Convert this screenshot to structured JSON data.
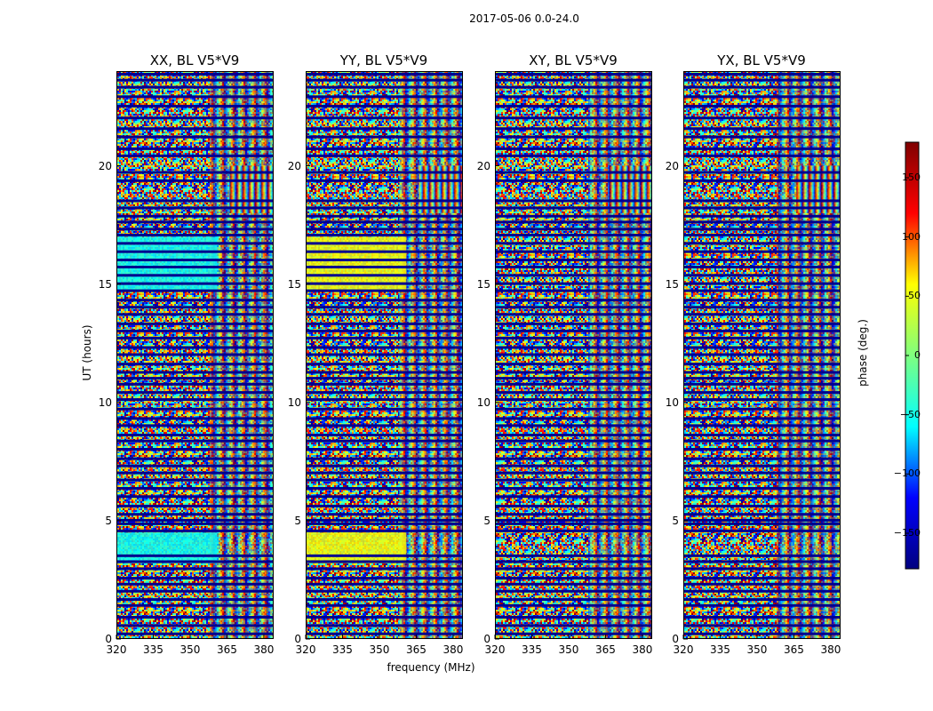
{
  "suptitle": "2017-05-06 0.0-24.0",
  "chart_data": {
    "type": "heatmap",
    "title": "2017-05-06 0.0-24.0",
    "xlabel": "frequency (MHz)",
    "ylabel": "UT (hours)",
    "xlim": [
      320,
      384
    ],
    "ylim": [
      0,
      24
    ],
    "xticks": [
      "320",
      "335",
      "350",
      "365",
      "380"
    ],
    "yticks": [
      "0",
      "5",
      "10",
      "15",
      "20"
    ],
    "panels": [
      {
        "title": "XX, BL V5*V9",
        "low_phase_band": {
          "freq": [
            320,
            361
          ],
          "ut": [
            [
              3.2,
              4.5
            ],
            [
              14.7,
              17.0
            ]
          ],
          "phase": -40
        }
      },
      {
        "title": "YY, BL V5*V9",
        "low_phase_band": {
          "freq": [
            320,
            361
          ],
          "ut": [
            [
              3.2,
              4.5
            ],
            [
              14.7,
              17.0
            ]
          ],
          "phase": 40
        }
      },
      {
        "title": "XY, BL V5*V9"
      },
      {
        "title": "YX, BL V5*V9"
      }
    ],
    "colorbar": {
      "label": "phase (deg.)",
      "range": [
        -180,
        180
      ],
      "ticks": [
        "150",
        "100",
        "50",
        "0",
        "−50",
        "−100",
        "−150"
      ],
      "tick_values": [
        150,
        100,
        50,
        0,
        -50,
        -100,
        -150
      ],
      "colormap": "jet",
      "colors": [
        "#000080",
        "#0000ff",
        "#00ffff",
        "#7fff7f",
        "#ffff00",
        "#ff0000",
        "#800000"
      ]
    },
    "flagged_ut": [
      0.2,
      0.55,
      0.9,
      1.4,
      1.65,
      2.0,
      2.3,
      2.55,
      2.95,
      3.25,
      3.5,
      4.55,
      4.85,
      5.0,
      5.25,
      5.6,
      6.0,
      6.35,
      6.7,
      7.0,
      7.3,
      7.6,
      8.0,
      8.35,
      8.6,
      9.0,
      9.3,
      9.7,
      10.1,
      10.4,
      10.75,
      11.0,
      11.25,
      11.6,
      12.0,
      12.3,
      12.7,
      13.0,
      13.3,
      13.7,
      14.0,
      14.3,
      14.7,
      15.0,
      15.35,
      15.7,
      16.0,
      16.35,
      16.7,
      17.05,
      17.3,
      17.6,
      17.85,
      18.2,
      18.5,
      19.35,
      19.7,
      20.4,
      20.7,
      21.2,
      21.55,
      22.0,
      22.5,
      22.9,
      23.3,
      23.6,
      23.85
    ]
  }
}
